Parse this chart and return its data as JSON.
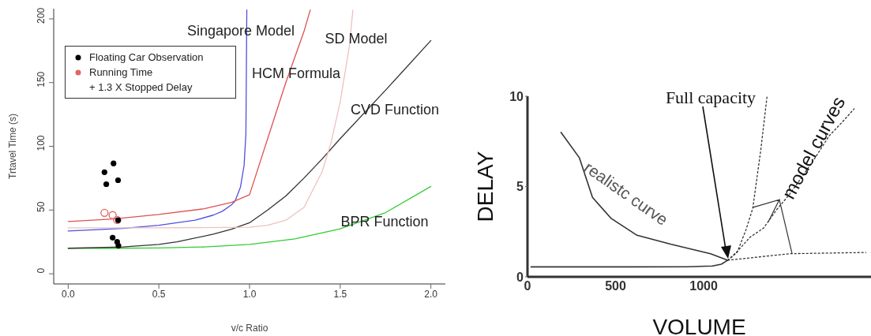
{
  "chart_data": [
    {
      "type": "line",
      "xlabel": "v/c Ratio",
      "ylabel": "Trtavel Time (s)",
      "xlim": [
        -0.08,
        2.08
      ],
      "ylim": [
        -8,
        208
      ],
      "xticks": [
        {
          "value": 0,
          "label": "0.0"
        },
        {
          "value": 0.5,
          "label": "0.5"
        },
        {
          "value": 1,
          "label": "1.0"
        },
        {
          "value": 1.5,
          "label": "1.5"
        },
        {
          "value": 2,
          "label": "2.0"
        }
      ],
      "yticks": [
        0,
        50,
        100,
        150,
        200
      ],
      "legend": "top left",
      "series": [
        {
          "type": "line",
          "color": "#33cc33",
          "x": [
            0,
            0.25,
            0.5,
            0.75,
            1,
            1.25,
            1.5,
            1.75,
            2
          ],
          "values": [
            20,
            20,
            20.2,
            21,
            23,
            27.3,
            35.2,
            48,
            68.5
          ]
        },
        {
          "type": "line",
          "color": "#333333",
          "x": [
            0,
            0.3,
            0.5,
            0.6,
            0.8,
            0.9,
            1,
            1.1,
            1.2,
            1.3,
            1.4,
            1.5,
            1.75,
            2
          ],
          "values": [
            20,
            21,
            23,
            25,
            31,
            35,
            40,
            50,
            61,
            75,
            90,
            106,
            144,
            183
          ]
        },
        {
          "type": "line",
          "color": "#5050e0",
          "x": [
            0,
            0.3,
            0.5,
            0.7,
            0.8,
            0.85,
            0.9,
            0.92,
            0.95,
            0.97,
            0.98,
            0.985
          ],
          "values": [
            33.5,
            35.5,
            38,
            42,
            46,
            49,
            54,
            57,
            68,
            85,
            110,
            207
          ]
        },
        {
          "type": "line",
          "color": "#e05050",
          "x": [
            0,
            0.25,
            0.5,
            0.75,
            0.9,
            1,
            1.05,
            1.1,
            1.2,
            1.3,
            1.335
          ],
          "values": [
            41,
            43,
            46.5,
            51,
            56,
            62,
            84,
            106,
            150,
            190,
            207
          ]
        },
        {
          "type": "line",
          "color": "#f0c0c0",
          "x": [
            0,
            0.5,
            1,
            1.1,
            1.2,
            1.3,
            1.4,
            1.45,
            1.5,
            1.55,
            1.57
          ],
          "values": [
            36,
            36,
            36.5,
            38,
            42,
            52,
            80,
            103,
            135,
            178,
            207
          ]
        },
        {
          "type": "scatter",
          "name": "Floating Car Observation",
          "color": "#000000",
          "marker": "circle",
          "x": [
            0.2,
            0.21,
            0.25,
            0.275,
            0.275,
            0.245,
            0.27,
            0.277
          ],
          "values": [
            79.7,
            70.3,
            86.6,
            73.4,
            42,
            28.3,
            25,
            22
          ]
        },
        {
          "type": "scatter",
          "name": "Running Time\n+ 1.3 X Stopped Delay",
          "color": "#e06666",
          "marker": "circle",
          "x": [
            0.2,
            0.245,
            0.27
          ],
          "values": [
            47.8,
            46,
            42.2
          ]
        }
      ],
      "annotations": [
        "Singapore Model",
        "HCM Formula",
        "SD Model",
        "CVD Function",
        "BPR Function"
      ]
    },
    {
      "type": "line",
      "xlabel": "VOLUME",
      "ylabel": "DELAY",
      "xlim": [
        0,
        1950
      ],
      "ylim": [
        0,
        10
      ],
      "xticks": [
        0,
        500,
        1000
      ],
      "yticks": [
        0,
        5,
        10
      ],
      "series": [
        {
          "type": "line",
          "color": "#333333",
          "line_style": "solid",
          "x": [
            20,
            300,
            600,
            900,
            1050,
            1100,
            1137,
            1040,
            816,
            622,
            473,
            369,
            294,
            190
          ],
          "values": [
            0.55,
            0.55,
            0.55,
            0.56,
            0.6,
            0.7,
            0.92,
            1.28,
            1.8,
            2.3,
            3.25,
            4.4,
            6.6,
            8
          ]
        },
        {
          "type": "line",
          "color": "#333333",
          "line_style": "dotted",
          "x": [
            1137,
            1190,
            1240,
            1279,
            1324,
            1360
          ],
          "values": [
            0.92,
            1.35,
            2.6,
            3.8,
            7,
            10
          ]
        },
        {
          "type": "line",
          "color": "#333333",
          "line_style": "dotted",
          "x": [
            1137,
            1190,
            1264,
            1340,
            1413,
            1490,
            1563,
            1640,
            1712,
            1790,
            1854
          ],
          "values": [
            0.92,
            1.4,
            2.2,
            2.7,
            3.7,
            4.6,
            5.6,
            6.7,
            7.8,
            8.6,
            9.3
          ]
        },
        {
          "type": "line",
          "color": "#333333",
          "line_style": "dotted",
          "x": [
            1137,
            1488,
            1921
          ],
          "values": [
            0.92,
            1.28,
            1.35
          ]
        }
      ],
      "annotations": [
        "Full capacity",
        {
          "text": "model curves",
          "x": 1367,
          "y": 3.05
        },
        "realistc curve"
      ]
    }
  ]
}
